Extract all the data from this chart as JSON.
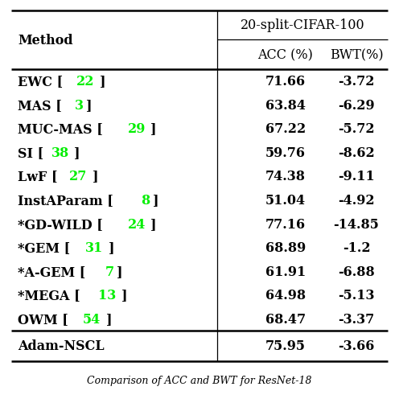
{
  "title": "20-split-CIFAR-100",
  "rows": [
    {
      "method": "EWC",
      "ref": "22",
      "acc": "71.66",
      "bwt": "-3.72",
      "bold_acc": false
    },
    {
      "method": "MAS",
      "ref": "3",
      "acc": "63.84",
      "bwt": "-6.29",
      "bold_acc": false
    },
    {
      "method": "MUC-MAS",
      "ref": "29",
      "acc": "67.22",
      "bwt": "-5.72",
      "bold_acc": false
    },
    {
      "method": "SI",
      "ref": "38",
      "acc": "59.76",
      "bwt": "-8.62",
      "bold_acc": false
    },
    {
      "method": "LwF",
      "ref": "27",
      "acc": "74.38",
      "bwt": "-9.11",
      "bold_acc": false
    },
    {
      "method": "InstAParam",
      "ref": "8",
      "acc": "51.04",
      "bwt": "-4.92",
      "bold_acc": false
    },
    {
      "method": "*GD-WILD",
      "ref": "24",
      "acc": "77.16",
      "bwt": "-14.85",
      "bold_acc": true
    },
    {
      "method": "*GEM",
      "ref": "31",
      "acc": "68.89",
      "bwt": "-1.2",
      "bold_acc": false
    },
    {
      "method": "*A-GEM",
      "ref": "7",
      "acc": "61.91",
      "bwt": "-6.88",
      "bold_acc": false
    },
    {
      "method": "*MEGA",
      "ref": "13",
      "acc": "64.98",
      "bwt": "-5.13",
      "bold_acc": false
    },
    {
      "method": "OWM",
      "ref": "54",
      "acc": "68.47",
      "bwt": "-3.37",
      "bold_acc": false
    }
  ],
  "last_row": {
    "method": "Adam-NSCL",
    "acc": "75.95",
    "bwt": "-3.66"
  },
  "bg_color": "#ffffff",
  "text_color": "#000000",
  "ref_color": "#00ee00",
  "line_color": "#000000",
  "caption": "Comparison of ACC and BWT for ResNet-18",
  "fontsize": 11.5,
  "header_fontsize": 11.5
}
